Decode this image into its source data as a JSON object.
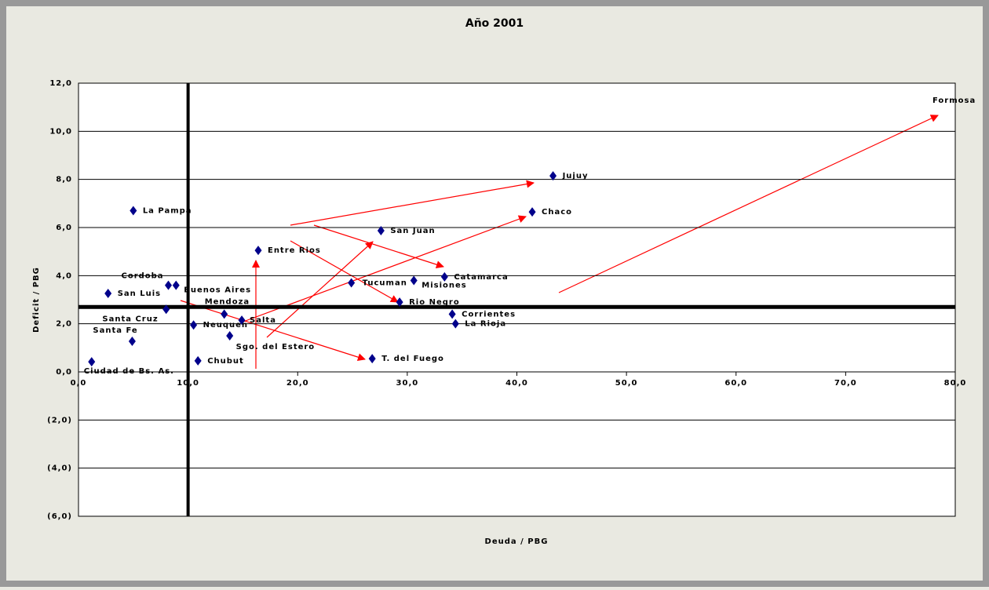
{
  "chart_data": {
    "type": "scatter",
    "title": "Año 2001",
    "x_label": "Deuda / PBG",
    "y_label": "Deficit / PBG",
    "labels": [
      "La Pampa",
      "Jujuy",
      "Chaco",
      "San Juan",
      "Entre Rios",
      "Catamarca",
      "Cordoba",
      "Buenos Aires",
      "San Luis",
      "Tucuman",
      "Misiones",
      "Rio Negro",
      "Mendoza",
      "Santa Cruz",
      "Corrientes",
      "La Rioja",
      "Salta",
      "Neuquen",
      "Sgo. del Estero",
      "Santa Fe",
      "T. del Fuego",
      "Chubut",
      "Ciudad de Bs. As."
    ],
    "x": [
      5.0,
      43.3,
      41.4,
      27.6,
      16.4,
      33.4,
      8.2,
      8.9,
      2.7,
      24.9,
      30.6,
      29.3,
      13.3,
      8.0,
      34.1,
      34.4,
      14.9,
      10.5,
      13.8,
      4.9,
      26.8,
      10.9,
      1.2
    ],
    "values": [
      6.7,
      8.15,
      6.65,
      5.87,
      5.05,
      3.95,
      3.6,
      3.6,
      3.26,
      3.7,
      3.8,
      2.9,
      2.4,
      2.6,
      2.4,
      2.0,
      2.15,
      1.95,
      1.5,
      1.27,
      0.55,
      0.46,
      0.42
    ],
    "color": "#00008b",
    "annotations": [
      "Formosa"
    ],
    "reference_lines": {
      "x": 10.0,
      "y": 2.7
    },
    "xlim": [
      0,
      80
    ],
    "ylim": [
      -6,
      12
    ],
    "xticks": [
      {
        "value": 0,
        "label": "0,0"
      },
      {
        "value": 10,
        "label": "10,0"
      },
      {
        "value": 20,
        "label": "20,0"
      },
      {
        "value": 30,
        "label": "30,0"
      },
      {
        "value": 40,
        "label": "40,0"
      },
      {
        "value": 50,
        "label": "50,0"
      },
      {
        "value": 60,
        "label": "60,0"
      },
      {
        "value": 70,
        "label": "70,0"
      },
      {
        "value": 80,
        "label": "80,0"
      }
    ],
    "yticks": [
      {
        "value": -6,
        "label": "(6,0)"
      },
      {
        "value": -4,
        "label": "(4,0)"
      },
      {
        "value": -2,
        "label": "(2,0)"
      },
      {
        "value": 0,
        "label": "0,0"
      },
      {
        "value": 2,
        "label": "2,0"
      },
      {
        "value": 4,
        "label": "4,0"
      },
      {
        "value": 6,
        "label": "6,0"
      },
      {
        "value": 8,
        "label": "8,0"
      },
      {
        "value": 10,
        "label": "10,0"
      },
      {
        "value": 12,
        "label": "12,0"
      }
    ],
    "grid": true
  }
}
